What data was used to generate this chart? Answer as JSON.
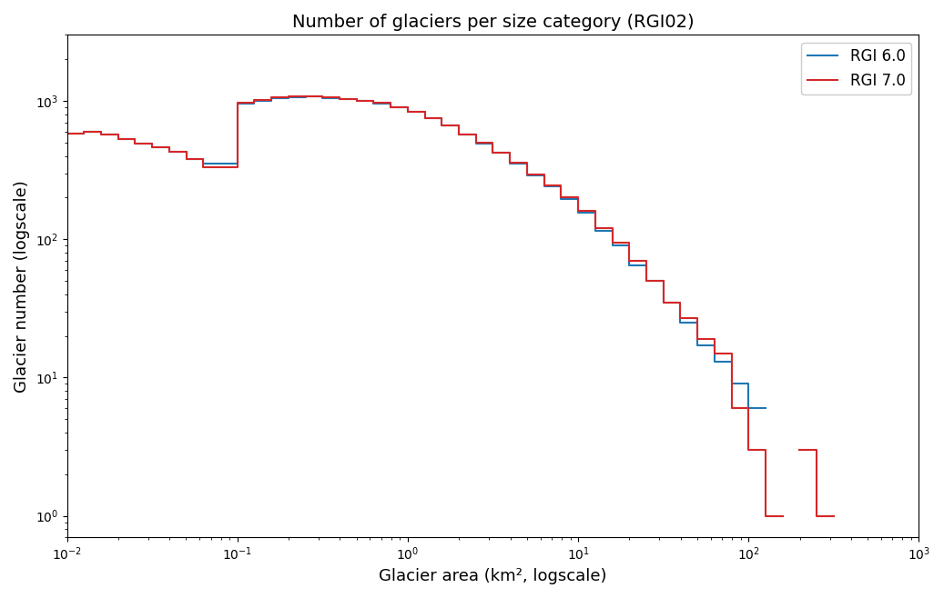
{
  "title": "Number of glaciers per size category (RGI02)",
  "xlabel": "Glacier area (km², logscale)",
  "ylabel": "Glacier number (logscale)",
  "color_rgi6": "#1f77b4",
  "color_rgi7": "#d62728",
  "label_rgi6": "RGI 6.0",
  "label_rgi7": "RGI 7.0",
  "xlim": [
    0.01,
    1000
  ],
  "ylim": [
    0.7,
    3000
  ],
  "log_bin_start": -2,
  "log_bin_end": 3,
  "log_bin_step": 0.1,
  "rgi6_counts": [
    580,
    600,
    570,
    530,
    490,
    460,
    430,
    380,
    350,
    350,
    960,
    1000,
    1050,
    1060,
    1070,
    1050,
    1030,
    1000,
    960,
    900,
    830,
    750,
    660,
    570,
    490,
    420,
    350,
    290,
    240,
    195,
    155,
    115,
    90,
    65,
    50,
    35,
    25,
    17,
    13,
    9,
    6,
    0,
    0,
    0,
    0,
    0,
    0,
    0,
    0,
    0
  ],
  "rgi7_counts": [
    580,
    600,
    570,
    530,
    490,
    460,
    430,
    380,
    330,
    330,
    970,
    1010,
    1060,
    1070,
    1080,
    1055,
    1035,
    1005,
    965,
    905,
    835,
    755,
    665,
    575,
    495,
    425,
    355,
    295,
    245,
    200,
    160,
    120,
    95,
    70,
    50,
    35,
    27,
    19,
    15,
    6,
    3,
    1,
    0,
    3,
    1,
    0,
    0,
    0,
    0,
    0
  ]
}
